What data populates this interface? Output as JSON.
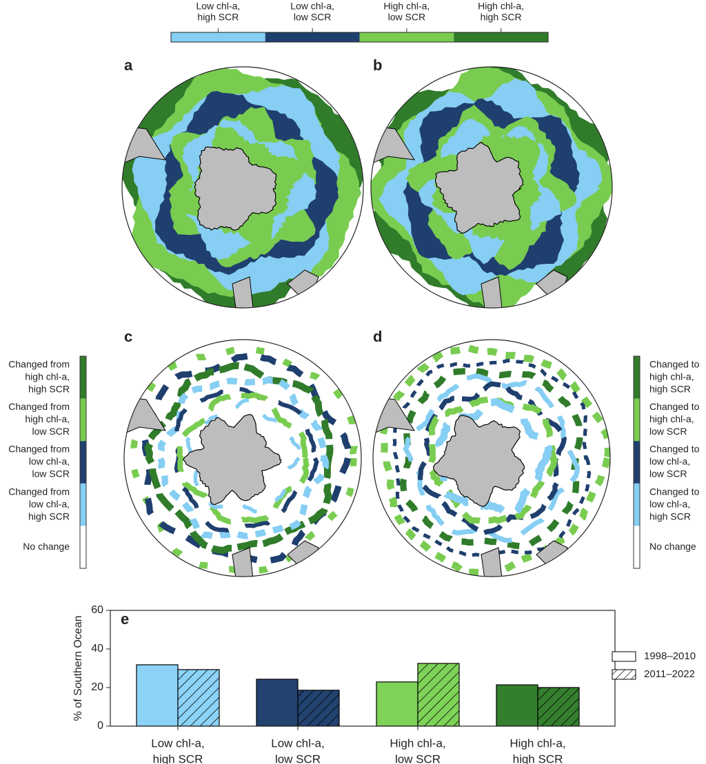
{
  "panel_labels": [
    "a",
    "b",
    "c",
    "d",
    "e"
  ],
  "top_legend": {
    "items": [
      {
        "lines": [
          "Low chl-a,",
          "high SCR"
        ],
        "color": "#86cef3"
      },
      {
        "lines": [
          "Low chl-a,",
          "low SCR"
        ],
        "color": "#1f3f6e"
      },
      {
        "lines": [
          "High chl-a,",
          "low SCR"
        ],
        "color": "#79cc50"
      },
      {
        "lines": [
          "High chl-a,",
          "high SCR"
        ],
        "color": "#317c2b"
      }
    ]
  },
  "left_legend": {
    "items": [
      {
        "lines": [
          "Changed from",
          "high chl-a,",
          "high SCR"
        ],
        "color": "#317c2b"
      },
      {
        "lines": [
          "Changed from",
          "high chl-a,",
          "low SCR"
        ],
        "color": "#79cc50"
      },
      {
        "lines": [
          "Changed from",
          "low chl-a,",
          "low SCR"
        ],
        "color": "#1f3f6e"
      },
      {
        "lines": [
          "Changed from",
          "low chl-a,",
          "high SCR"
        ],
        "color": "#86cef3"
      },
      {
        "lines": [
          "No change"
        ],
        "color": "#ffffff"
      }
    ]
  },
  "right_legend": {
    "items": [
      {
        "lines": [
          "Changed to",
          "high chl-a,",
          "high SCR"
        ],
        "color": "#317c2b"
      },
      {
        "lines": [
          "Changed to",
          "high chl-a,",
          "low SCR"
        ],
        "color": "#79cc50"
      },
      {
        "lines": [
          "Changed to",
          "low chl-a,",
          "low SCR"
        ],
        "color": "#1f3f6e"
      },
      {
        "lines": [
          "Changed to",
          "low chl-a,",
          "high SCR"
        ],
        "color": "#86cef3"
      },
      {
        "lines": [
          "No change"
        ],
        "color": "#ffffff"
      }
    ]
  },
  "chart_data": {
    "type": "bar",
    "ylabel": "% of Southern Ocean",
    "categories": [
      [
        "Low chl-a,",
        "high SCR"
      ],
      [
        "Low chl-a,",
        "low SCR"
      ],
      [
        "High chl-a,",
        "low SCR"
      ],
      [
        "High chl-a,",
        "high SCR"
      ]
    ],
    "colors": [
      "#8cd3f7",
      "#22426f",
      "#7ed257",
      "#347f2e"
    ],
    "series": [
      {
        "name": "1998–2010",
        "hatch": false,
        "values": [
          31.8,
          24.3,
          22.9,
          21.4
        ]
      },
      {
        "name": "2011–2022",
        "hatch": true,
        "values": [
          29.3,
          18.6,
          32.5,
          20.0
        ]
      }
    ],
    "ylim": [
      0,
      60
    ],
    "yticks": [
      0,
      20,
      40,
      60
    ],
    "legend": "right"
  }
}
